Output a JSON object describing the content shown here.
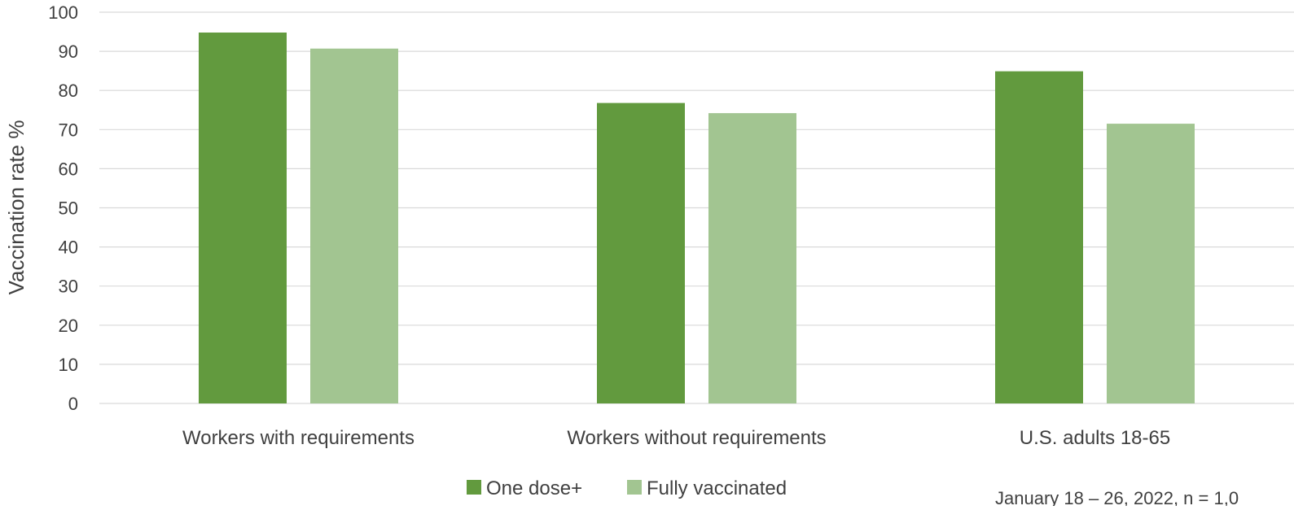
{
  "chart_data": {
    "type": "bar",
    "title": "",
    "xlabel": "",
    "ylabel": "Vaccination rate %",
    "ylim": [
      0,
      100
    ],
    "yticks": [
      0,
      10,
      20,
      30,
      40,
      50,
      60,
      70,
      80,
      90,
      100
    ],
    "grid": true,
    "legend_position": "bottom",
    "categories": [
      "Workers with requirements",
      "Workers without requirements",
      "U.S. adults 18-65"
    ],
    "series": [
      {
        "name": "One dose+",
        "color": "#629a3e",
        "values": [
          94.8,
          76.8,
          84.9
        ]
      },
      {
        "name": "Fully vaccinated",
        "color": "#a2c591",
        "values": [
          90.7,
          74.2,
          71.5
        ]
      }
    ],
    "footnote": "January 18 – 26, 2022, n = 1,0"
  },
  "colors": {
    "gridline": "#d9d9d9",
    "text": "#404040"
  }
}
